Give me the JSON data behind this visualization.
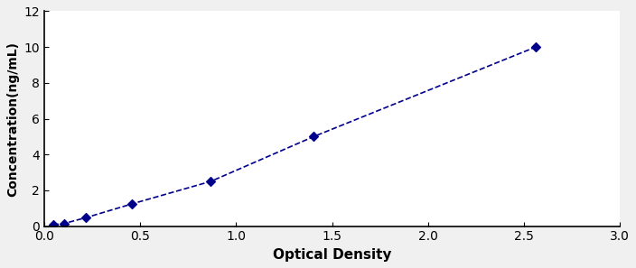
{
  "x_data": [
    0.046,
    0.106,
    0.215,
    0.459,
    0.868,
    1.404,
    2.561
  ],
  "y_data": [
    0.078,
    0.156,
    0.469,
    1.25,
    2.5,
    5.0,
    10.0
  ],
  "line_color": "#00008B",
  "marker_color": "#00008B",
  "marker_style": "D",
  "marker_size": 5,
  "line_style": "--",
  "line_width": 1.2,
  "xlabel": "Optical Density",
  "ylabel": "Concentration(ng/mL)",
  "xlim": [
    0,
    3
  ],
  "ylim": [
    0,
    12
  ],
  "xticks": [
    0,
    0.5,
    1,
    1.5,
    2,
    2.5,
    3
  ],
  "yticks": [
    0,
    2,
    4,
    6,
    8,
    10,
    12
  ],
  "xlabel_fontsize": 11,
  "ylabel_fontsize": 10,
  "tick_fontsize": 10,
  "background_color": "#ffffff",
  "figure_background_color": "#f0f0f0"
}
